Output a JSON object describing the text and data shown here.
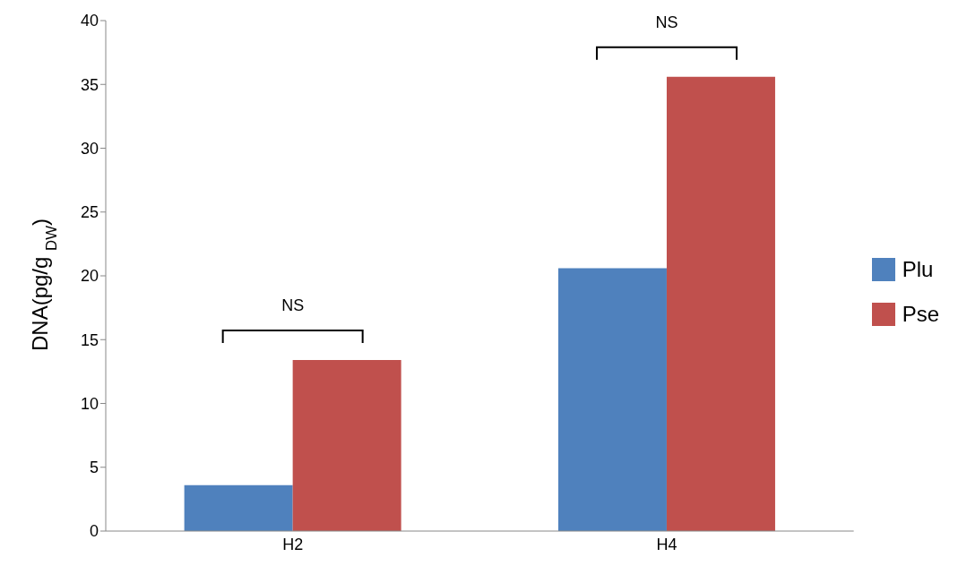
{
  "chart_data": {
    "type": "bar",
    "ylabel": "DNA(pg/g $_{DW}$)",
    "categories": [
      "H2",
      "H4"
    ],
    "series": [
      {
        "name": "Plu",
        "color": "#4f81bd",
        "values": [
          3.6,
          20.6
        ]
      },
      {
        "name": "Pse",
        "color": "#c0504d",
        "values": [
          13.4,
          35.6
        ]
      }
    ],
    "ylim": [
      0,
      40
    ],
    "yticks": [
      0,
      5,
      10,
      15,
      20,
      25,
      30,
      35,
      40
    ],
    "grid": false,
    "legend": "right",
    "annotations": [
      "NS",
      "NS"
    ]
  }
}
